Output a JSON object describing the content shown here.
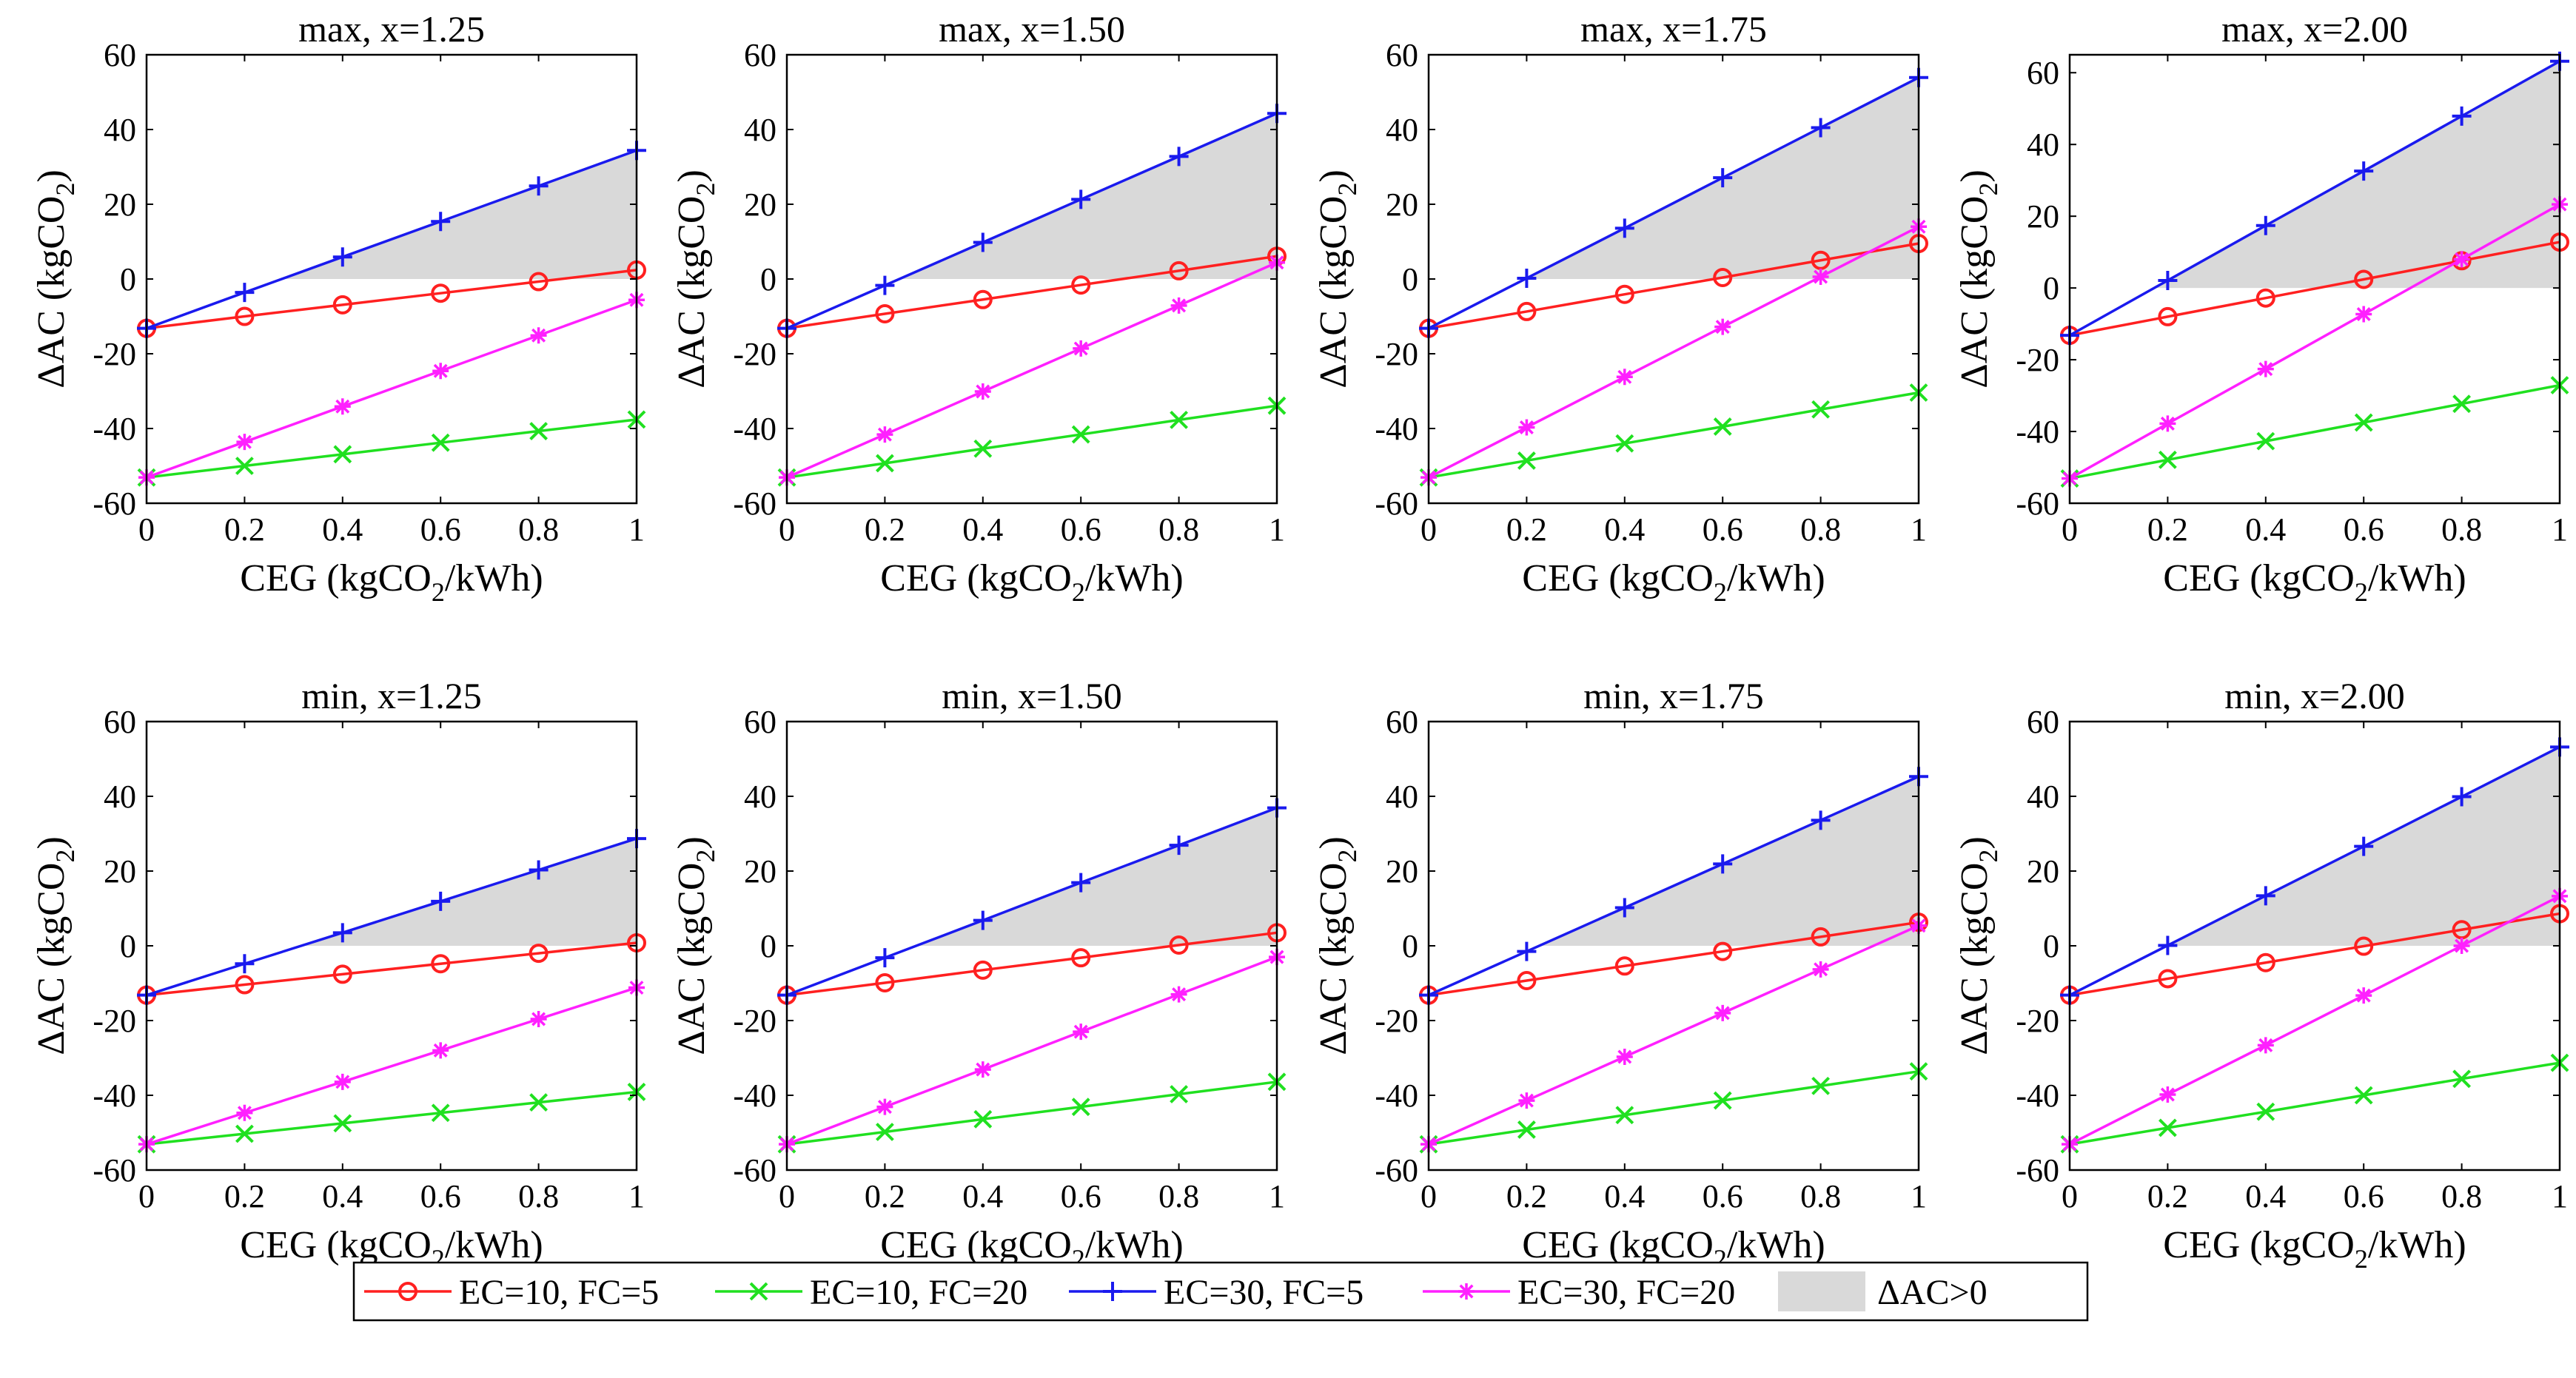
{
  "chart_data": {
    "type": "line",
    "x": [
      0,
      0.2,
      0.4,
      0.6,
      0.8,
      1
    ],
    "xticks": [
      "0",
      "0.2",
      "0.4",
      "0.6",
      "0.8",
      "1"
    ],
    "yticks": [
      "-60",
      "-40",
      "-20",
      "0",
      "20",
      "40",
      "60"
    ],
    "xlim": [
      0,
      1
    ],
    "ylabel": {
      "main": "ΔAC (kgCO",
      "sub": "2",
      "tail": ")"
    },
    "legend": {
      "position": "bottom",
      "entries": [
        {
          "key": "ec10fc5",
          "label": "EC=10, FC=5",
          "color": "#ff2020",
          "marker": "circle"
        },
        {
          "key": "ec10fc20",
          "label": "EC=10, FC=20",
          "color": "#20e020",
          "marker": "x"
        },
        {
          "key": "ec30fc5",
          "label": "EC=30, FC=5",
          "color": "#1a1aee",
          "marker": "plus"
        },
        {
          "key": "ec30fc20",
          "label": "EC=30, FC=20",
          "color": "#ff20ff",
          "marker": "star"
        },
        {
          "key": "shade",
          "label": "ΔAC>0",
          "color": "#d9d9d9",
          "marker": "patch"
        }
      ]
    },
    "panels": [
      {
        "title": "max, x=1.25",
        "ylim": [
          -60,
          60
        ],
        "xlabel": {
          "main": "CEG (kgCO",
          "sub": "2",
          "tail": "/kWh)"
        },
        "series": [
          {
            "key": "ec10fc5",
            "values": [
              -13.2,
              -10.0,
              -6.9,
              -3.8,
              -0.7,
              2.4
            ]
          },
          {
            "key": "ec10fc20",
            "values": [
              -53.1,
              -50.0,
              -46.9,
              -43.8,
              -40.7,
              -37.6
            ]
          },
          {
            "key": "ec30fc5",
            "values": [
              -13.2,
              -3.6,
              5.9,
              15.4,
              24.9,
              34.4
            ]
          },
          {
            "key": "ec30fc20",
            "values": [
              -53.1,
              -43.6,
              -34.1,
              -24.6,
              -15.1,
              -5.6
            ]
          }
        ]
      },
      {
        "title": "max, x=1.50",
        "ylim": [
          -60,
          60
        ],
        "xlabel": {
          "main": "CEG (kgCO",
          "sub": "2",
          "tail": "/kWh)"
        },
        "series": [
          {
            "key": "ec10fc5",
            "values": [
              -13.2,
              -9.3,
              -5.5,
              -1.6,
              2.2,
              6.1
            ]
          },
          {
            "key": "ec10fc20",
            "values": [
              -53.1,
              -49.3,
              -45.4,
              -41.6,
              -37.7,
              -33.9
            ]
          },
          {
            "key": "ec30fc5",
            "values": [
              -13.2,
              -1.7,
              9.8,
              21.3,
              32.8,
              44.3
            ]
          },
          {
            "key": "ec30fc20",
            "values": [
              -53.1,
              -41.6,
              -30.1,
              -18.6,
              -7.1,
              4.4
            ]
          }
        ]
      },
      {
        "title": "max, x=1.75",
        "ylim": [
          -60,
          60
        ],
        "xlabel": {
          "main": "CEG (kgCO",
          "sub": "2",
          "tail": "/kWh)"
        },
        "series": [
          {
            "key": "ec10fc5",
            "values": [
              -13.2,
              -8.7,
              -4.1,
              0.4,
              5.0,
              9.5
            ]
          },
          {
            "key": "ec10fc20",
            "values": [
              -53.1,
              -48.6,
              -44.0,
              -39.5,
              -34.9,
              -30.4
            ]
          },
          {
            "key": "ec30fc5",
            "values": [
              -13.2,
              0.2,
              13.6,
              27.1,
              40.5,
              53.9
            ]
          },
          {
            "key": "ec30fc20",
            "values": [
              -53.1,
              -39.7,
              -26.2,
              -12.8,
              0.6,
              14.0
            ]
          }
        ]
      },
      {
        "title": "max, x=2.00",
        "ylim": [
          -60,
          65
        ],
        "xlabel": {
          "main": "CEG (kgCO",
          "sub": "2",
          "tail": "/kWh)"
        },
        "series": [
          {
            "key": "ec10fc5",
            "values": [
              -13.2,
              -8.0,
              -2.8,
              2.4,
              7.6,
              12.8
            ]
          },
          {
            "key": "ec10fc20",
            "values": [
              -53.1,
              -47.9,
              -42.7,
              -37.5,
              -32.3,
              -27.1
            ]
          },
          {
            "key": "ec30fc5",
            "values": [
              -13.2,
              2.1,
              17.4,
              32.6,
              47.9,
              63.2
            ]
          },
          {
            "key": "ec30fc20",
            "values": [
              -53.1,
              -37.8,
              -22.6,
              -7.3,
              8.0,
              23.3
            ]
          }
        ]
      },
      {
        "title": "min, x=1.25",
        "ylim": [
          -60,
          60
        ],
        "xlabel": {
          "main": "CEG  (kgCO",
          "sub": "2",
          "tail": "/kWh)"
        },
        "series": [
          {
            "key": "ec10fc5",
            "values": [
              -13.2,
              -10.4,
              -7.6,
              -4.8,
              -2.0,
              0.8
            ]
          },
          {
            "key": "ec10fc20",
            "values": [
              -53.1,
              -50.3,
              -47.5,
              -44.7,
              -41.9,
              -39.1
            ]
          },
          {
            "key": "ec30fc5",
            "values": [
              -13.2,
              -4.8,
              3.5,
              11.9,
              20.3,
              28.7
            ]
          },
          {
            "key": "ec30fc20",
            "values": [
              -53.1,
              -44.7,
              -36.4,
              -28.0,
              -19.6,
              -11.2
            ]
          }
        ]
      },
      {
        "title": "min, x=1.50",
        "ylim": [
          -60,
          60
        ],
        "xlabel": {
          "main": "CEG (kgCO",
          "sub": "2",
          "tail": "/kWh)"
        },
        "series": [
          {
            "key": "ec10fc5",
            "values": [
              -13.2,
              -9.9,
              -6.5,
              -3.2,
              0.2,
              3.5
            ]
          },
          {
            "key": "ec10fc20",
            "values": [
              -53.1,
              -49.8,
              -46.4,
              -43.1,
              -39.7,
              -36.4
            ]
          },
          {
            "key": "ec30fc5",
            "values": [
              -13.2,
              -3.2,
              6.8,
              16.9,
              26.9,
              36.9
            ]
          },
          {
            "key": "ec30fc20",
            "values": [
              -53.1,
              -43.1,
              -33.1,
              -23.0,
              -13.0,
              -3.0
            ]
          }
        ]
      },
      {
        "title": "min, x=1.75",
        "ylim": [
          -60,
          60
        ],
        "xlabel": {
          "main": "CEG (kgCO",
          "sub": "2",
          "tail": "/kWh)"
        },
        "series": [
          {
            "key": "ec10fc5",
            "values": [
              -13.2,
              -9.3,
              -5.4,
              -1.5,
              2.4,
              6.3
            ]
          },
          {
            "key": "ec10fc20",
            "values": [
              -53.1,
              -49.2,
              -45.3,
              -41.4,
              -37.5,
              -33.6
            ]
          },
          {
            "key": "ec30fc5",
            "values": [
              -13.2,
              -1.5,
              10.2,
              21.9,
              33.6,
              45.3
            ]
          },
          {
            "key": "ec30fc20",
            "values": [
              -53.1,
              -41.4,
              -29.7,
              -18.0,
              -6.3,
              5.4
            ]
          }
        ]
      },
      {
        "title": "min, x=2.00",
        "ylim": [
          -60,
          60
        ],
        "xlabel": {
          "main": "CEG (kgCO",
          "sub": "2",
          "tail": "/kWh)"
        },
        "series": [
          {
            "key": "ec10fc5",
            "values": [
              -13.2,
              -8.8,
              -4.5,
              -0.1,
              4.3,
              8.6
            ]
          },
          {
            "key": "ec10fc20",
            "values": [
              -53.1,
              -48.7,
              -44.4,
              -40.0,
              -35.6,
              -31.3
            ]
          },
          {
            "key": "ec30fc5",
            "values": [
              -13.2,
              0.1,
              13.4,
              26.6,
              39.9,
              53.2
            ]
          },
          {
            "key": "ec30fc20",
            "values": [
              -53.1,
              -39.8,
              -26.6,
              -13.3,
              0.0,
              13.3
            ]
          }
        ]
      }
    ]
  }
}
